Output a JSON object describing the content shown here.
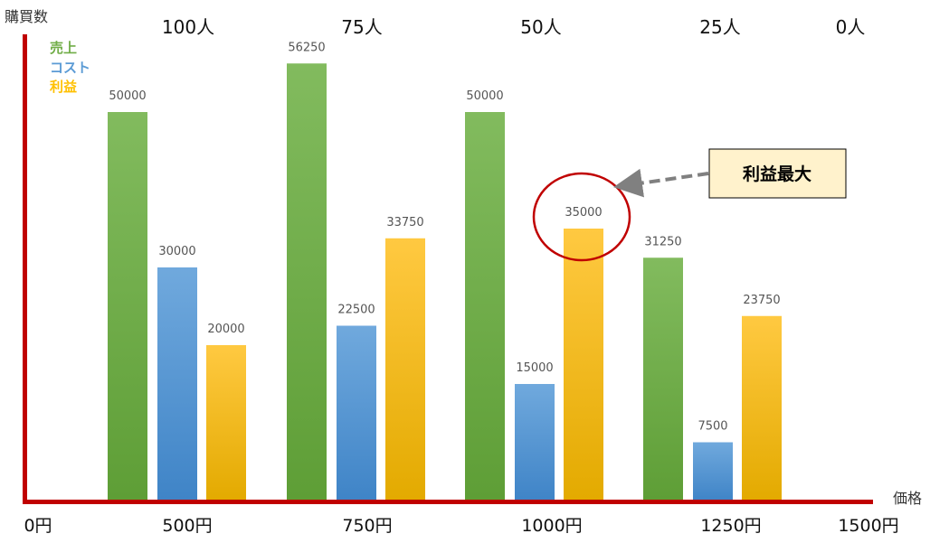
{
  "chart_data": {
    "type": "bar",
    "ylabel": "購買数",
    "xlabel": "価格",
    "categories": [
      "500円",
      "750円",
      "1000円",
      "1250円"
    ],
    "x_ticks": [
      "0円",
      "500円",
      "750円",
      "1000円",
      "1250円",
      "1500円"
    ],
    "top_ticks": [
      "100人",
      "75人",
      "50人",
      "25人",
      "0人"
    ],
    "series": [
      {
        "name": "売上",
        "color": "#70AD47",
        "values": [
          50000,
          56250,
          50000,
          31250
        ]
      },
      {
        "name": "コスト",
        "color": "#5B9BD5",
        "values": [
          30000,
          22500,
          15000,
          7500
        ]
      },
      {
        "name": "利益",
        "color": "#FFC000",
        "values": [
          20000,
          33750,
          35000,
          23750
        ]
      }
    ],
    "ylim": [
      0,
      60000
    ],
    "grid": false,
    "legend_position": "top-left",
    "axis_color": "#C00000",
    "annotation": {
      "text": "利益最大",
      "target_category": "1000円",
      "target_series": "利益",
      "box_color": "#FFF2CC",
      "circle_color": "#C00000"
    }
  }
}
